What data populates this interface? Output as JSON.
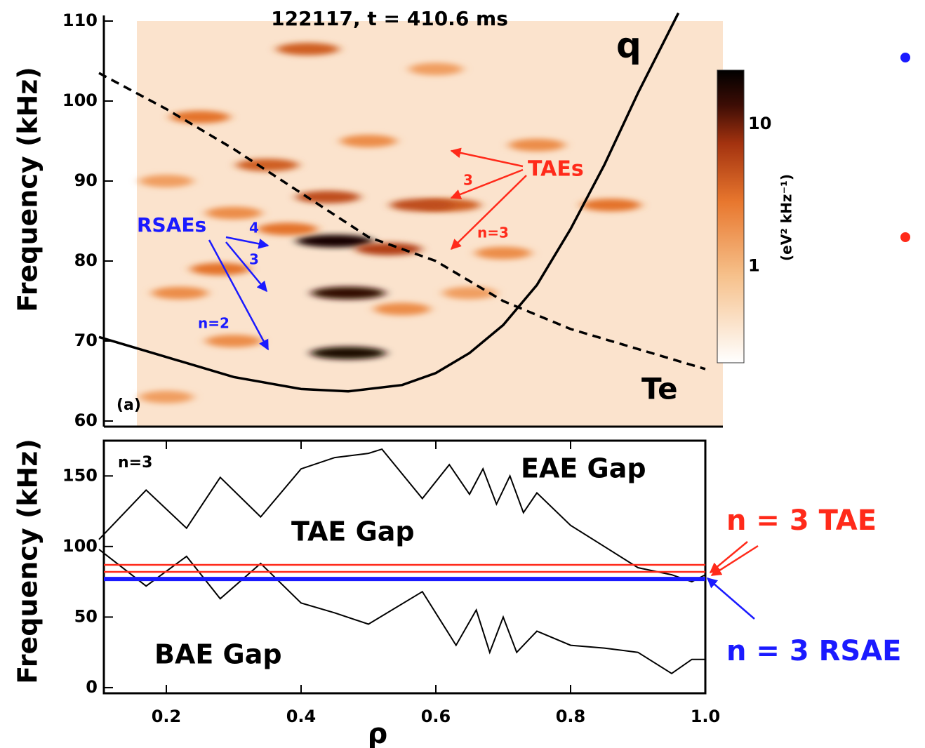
{
  "chart_data": [
    {
      "type": "heatmap",
      "title": "122117, t = 410.6 ms",
      "ylabel": "Frequency (kHz)",
      "xlim": [
        0.1,
        1.0
      ],
      "ylim": [
        60,
        110
      ],
      "yticks": [
        60,
        70,
        80,
        90,
        100,
        110
      ],
      "x": [
        0.45,
        0.47,
        0.47,
        0.53,
        0.44,
        0.62,
        0.58,
        0.35,
        0.41,
        0.25,
        0.28,
        0.22,
        0.86,
        0.7,
        0.75,
        0.65,
        0.3,
        0.2,
        0.55,
        0.6,
        0.38,
        0.5,
        0.3,
        0.2
      ],
      "y": [
        82.5,
        76,
        68.5,
        81.5,
        88,
        87,
        87,
        92,
        106.5,
        98,
        79,
        76,
        87,
        81,
        94.5,
        76,
        70,
        63,
        74,
        104,
        84,
        95,
        86,
        90
      ],
      "values": [
        20,
        15,
        18,
        6,
        5,
        4,
        5,
        4,
        4,
        3,
        3,
        2,
        3,
        2,
        2,
        1.5,
        2,
        1.5,
        2,
        1.5,
        3,
        2,
        2,
        1.5
      ],
      "colorbar": {
        "label": "(eV² kHz⁻¹)",
        "log": true,
        "lim": [
          0.21,
          24
        ],
        "ticks": [
          1,
          10
        ]
      },
      "series": [
        {
          "name": "q",
          "color": "#000000",
          "x": [
            0.1,
            0.2,
            0.3,
            0.4,
            0.47,
            0.55,
            0.6,
            0.65,
            0.7,
            0.75,
            0.8,
            0.85,
            0.9,
            0.96
          ],
          "values": [
            70.5,
            68,
            65.5,
            64,
            63.7,
            64.5,
            66,
            68.5,
            72,
            77,
            84,
            92,
            101,
            111
          ]
        },
        {
          "name": "Te",
          "color": "#000000",
          "dash": true,
          "x": [
            0.1,
            0.2,
            0.3,
            0.4,
            0.5,
            0.6,
            0.7,
            0.8,
            0.9,
            1.0
          ],
          "values": [
            103.5,
            99,
            94,
            88.5,
            83,
            80,
            75,
            71.5,
            69,
            66.5
          ]
        }
      ],
      "annotations": [
        {
          "text": "RSAEs",
          "color": "#1a1aff"
        },
        {
          "text": "4",
          "color": "#1a1aff"
        },
        {
          "text": "3",
          "color": "#1a1aff"
        },
        {
          "text": "n=2",
          "color": "#1a1aff"
        },
        {
          "text": "TAEs",
          "color": "#ff2a1a"
        },
        {
          "text": "3",
          "color": "#ff2a1a"
        },
        {
          "text": "n=3",
          "color": "#ff2a1a"
        },
        {
          "text": "(a)",
          "color": "#000000"
        }
      ]
    },
    {
      "type": "line",
      "xlabel": "ρ",
      "ylabel": "Frequency (kHz)",
      "xlim": [
        0.1,
        1.0
      ],
      "xticks": [
        0.2,
        0.4,
        0.6,
        0.8,
        {
          "value": 1.0,
          "label": "1.0"
        }
      ],
      "ylim": [
        -4,
        175
      ],
      "yticks": [
        0,
        50,
        100,
        150
      ],
      "series": [
        {
          "color": "#000000",
          "x": [
            0.1,
            0.17,
            0.23,
            0.28,
            0.34,
            0.4,
            0.45,
            0.5,
            0.52,
            0.58,
            0.62,
            0.65,
            0.67,
            0.69,
            0.71,
            0.73,
            0.75,
            0.8,
            0.85,
            0.9,
            0.95,
            0.98,
            1.0
          ],
          "values": [
            105,
            140,
            113,
            149,
            121,
            155,
            163,
            166,
            169,
            134,
            158,
            137,
            155,
            130,
            150,
            124,
            138,
            115,
            100,
            85,
            80,
            75,
            80
          ]
        },
        {
          "color": "#000000",
          "x": [
            0.1,
            0.17,
            0.23,
            0.28,
            0.34,
            0.4,
            0.45,
            0.5,
            0.58,
            0.63,
            0.66,
            0.68,
            0.7,
            0.72,
            0.75,
            0.8,
            0.85,
            0.9,
            0.95,
            0.98,
            1.0
          ],
          "values": [
            98,
            72,
            93,
            63,
            88,
            60,
            53,
            45,
            68,
            30,
            55,
            25,
            50,
            25,
            40,
            30,
            28,
            25,
            10,
            20,
            20
          ]
        }
      ],
      "modes": [
        {
          "name": "n = 3 TAE",
          "color": "#ff2a1a",
          "values": [
            87,
            82
          ]
        },
        {
          "name": "n = 3 RSAE",
          "color": "#1a1aff",
          "values": [
            77
          ]
        }
      ],
      "annotations": [
        {
          "text": "n=3"
        },
        {
          "text": "EAE Gap"
        },
        {
          "text": "TAE Gap"
        },
        {
          "text": "BAE Gap"
        }
      ]
    }
  ]
}
